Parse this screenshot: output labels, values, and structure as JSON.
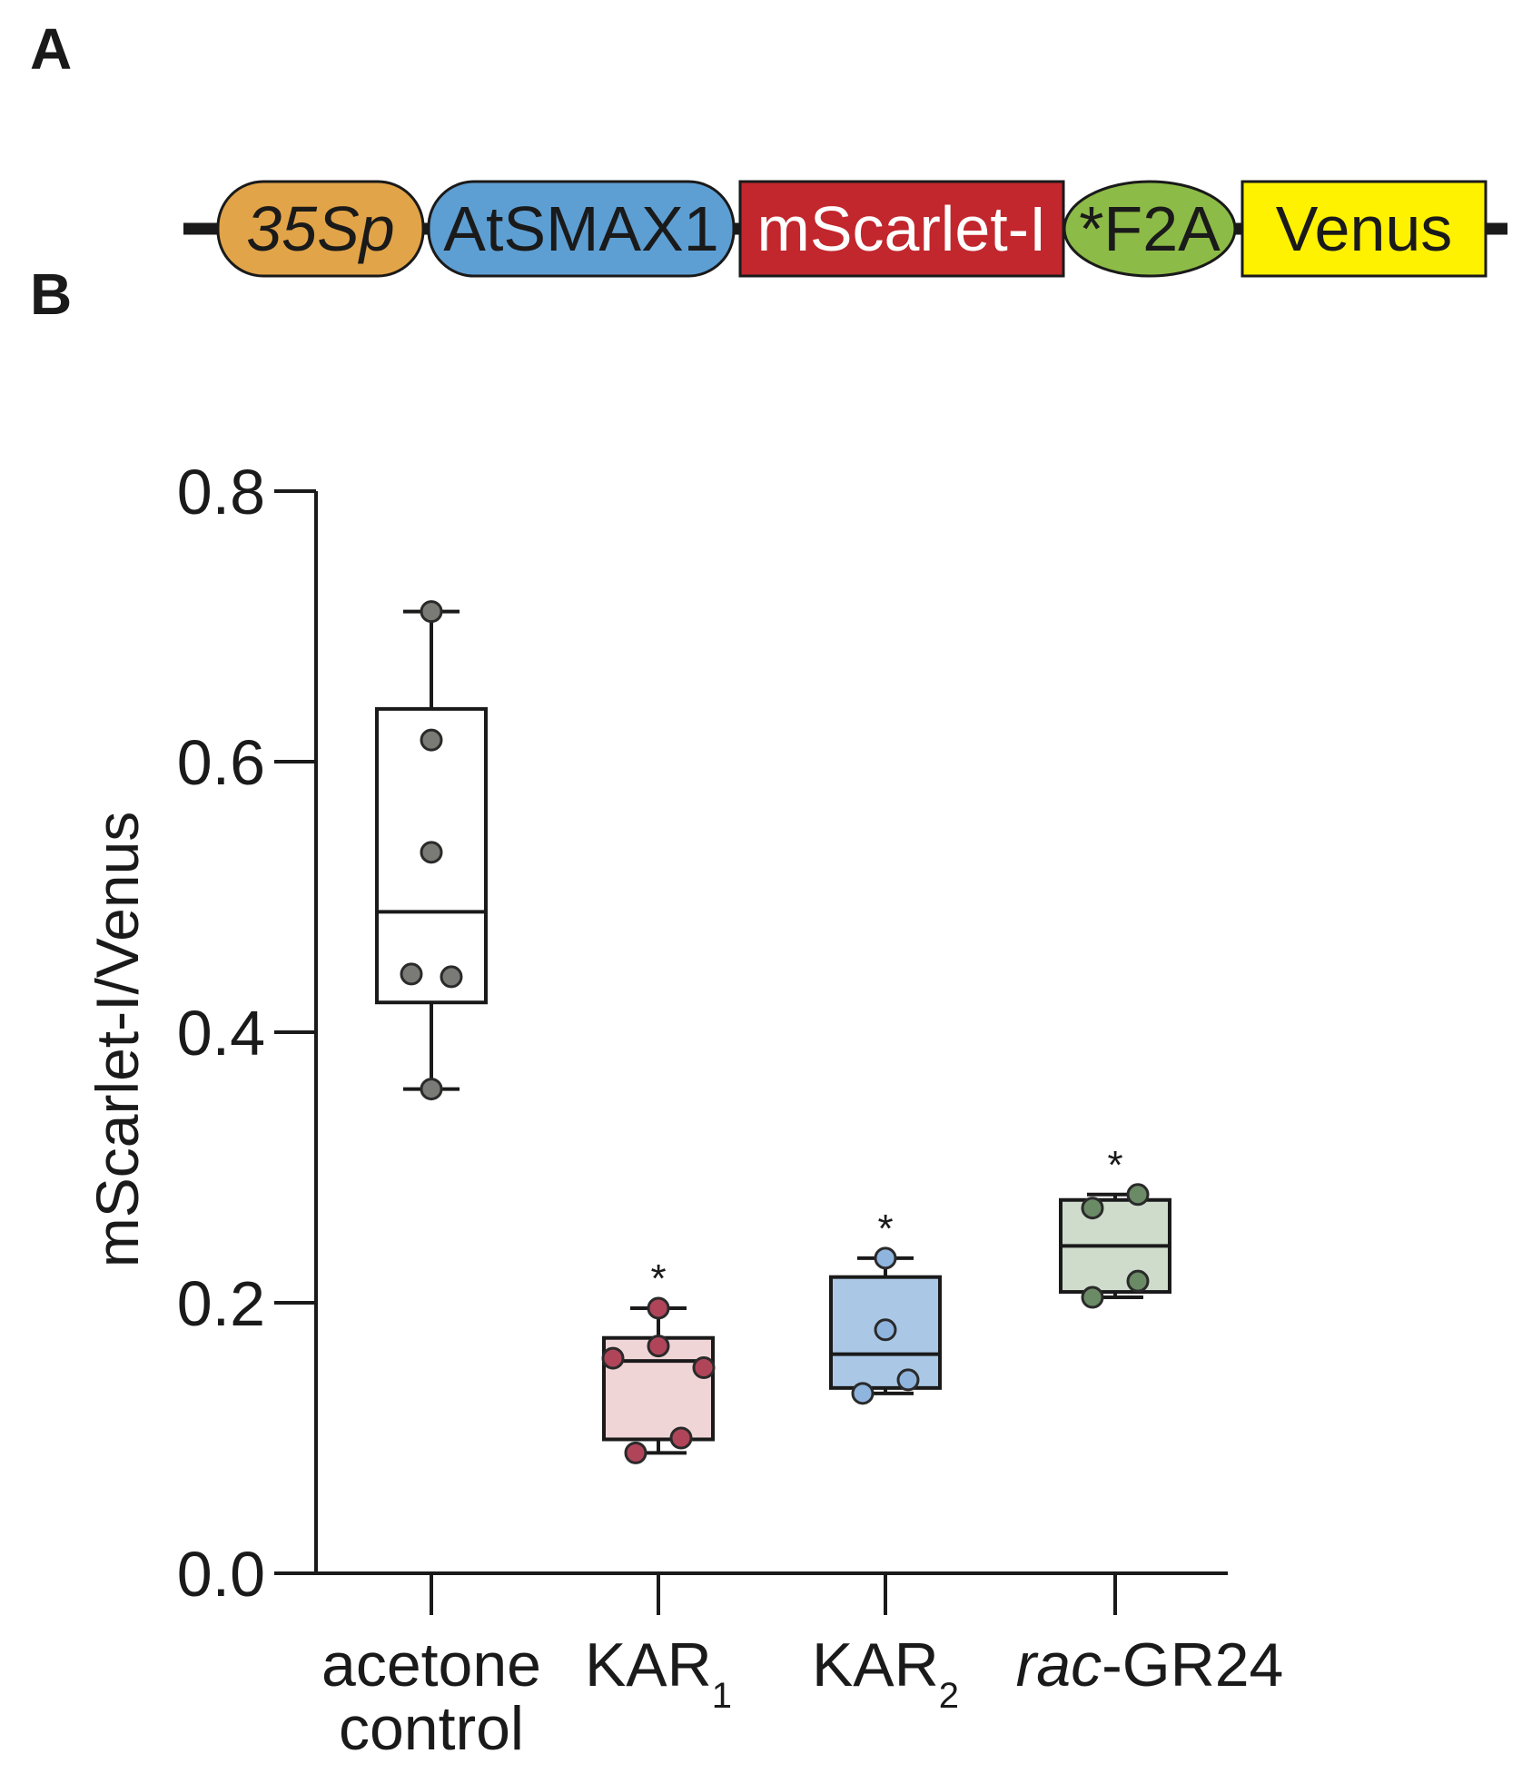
{
  "panel_a": {
    "letter": "A",
    "construct": [
      {
        "label": "35Sp",
        "shape": "pill",
        "color": "#e2a448",
        "italic": true,
        "text_color": "#1a1a1a"
      },
      {
        "label": "AtSMAX1",
        "shape": "pill",
        "color": "#5e9fd3",
        "italic": false,
        "text_color": "#1a1a1a"
      },
      {
        "label": "mScarlet-I",
        "shape": "rect",
        "color": "#c1272d",
        "italic": false,
        "text_color": "#ffffff"
      },
      {
        "label": "*F2A",
        "shape": "ellipse",
        "color": "#8dbb47",
        "italic": false,
        "text_color": "#1a1a1a"
      },
      {
        "label": "Venus",
        "shape": "rect",
        "color": "#fff200",
        "italic": false,
        "text_color": "#1a1a1a"
      }
    ]
  },
  "panel_b": {
    "letter": "B"
  },
  "chart_data": {
    "type": "box",
    "ylabel": "mScarlet-I/Venus",
    "xlabel": "",
    "ylim": [
      0.0,
      0.8
    ],
    "yticks": [
      "0.0",
      "0.2",
      "0.4",
      "0.6",
      "0.8"
    ],
    "grid": false,
    "legend": "none",
    "groups": [
      {
        "label": "acetone control",
        "label_lines": [
          "acetone",
          "control"
        ],
        "fill": "#ffffff",
        "point_color": "#7a7a76",
        "q1": 0.422,
        "median": 0.489,
        "q3": 0.639,
        "whisker_low": 0.358,
        "whisker_high": 0.711,
        "points": [
          0.711,
          0.616,
          0.533,
          0.443,
          0.441,
          0.358
        ],
        "significance": ""
      },
      {
        "label": "KAR1",
        "base": "KAR",
        "subscript": "1",
        "fill": "#f0d5d7",
        "point_color": "#b0455a",
        "q1": 0.099,
        "median": 0.157,
        "q3": 0.174,
        "whisker_low": 0.089,
        "whisker_high": 0.196,
        "points": [
          0.196,
          0.168,
          0.159,
          0.152,
          0.1,
          0.089
        ],
        "significance": "*"
      },
      {
        "label": "KAR2",
        "base": "KAR",
        "subscript": "2",
        "fill": "#aac8e6",
        "point_color": "#8fb4dd",
        "q1": 0.137,
        "median": 0.162,
        "q3": 0.219,
        "whisker_low": 0.133,
        "whisker_high": 0.233,
        "points": [
          0.233,
          0.18,
          0.143,
          0.133
        ],
        "significance": "*"
      },
      {
        "label": "rac-GR24",
        "italic_prefix": "rac",
        "rest": "-GR24",
        "fill": "#cfdccc",
        "point_color": "#6b8a66",
        "q1": 0.208,
        "median": 0.242,
        "q3": 0.276,
        "whisker_low": 0.204,
        "whisker_high": 0.28,
        "points": [
          0.28,
          0.27,
          0.216,
          0.204
        ],
        "significance": "*"
      }
    ]
  }
}
